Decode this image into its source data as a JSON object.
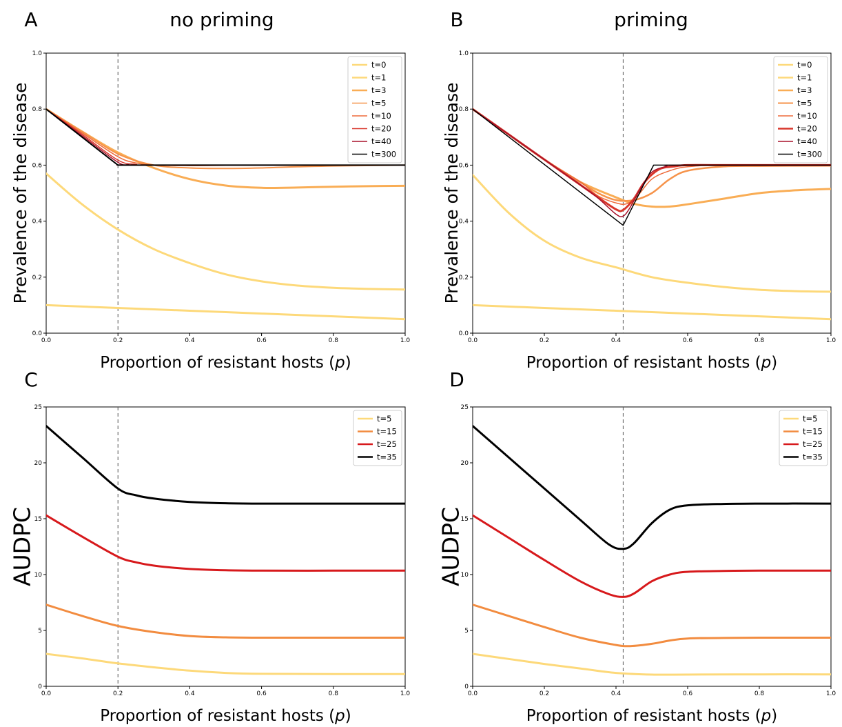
{
  "panels": [
    {
      "letter": "A",
      "column_title": "no priming"
    },
    {
      "letter": "B",
      "column_title": "priming"
    },
    {
      "letter": "C",
      "column_title": ""
    },
    {
      "letter": "D",
      "column_title": ""
    }
  ],
  "colors": {
    "t0": "#fdd97a",
    "t1": "#fdd97a",
    "t3": "#f9ad55",
    "t5": "#f6934a",
    "t10": "#ee6a3a",
    "t20": "#d8362b",
    "t40": "#a8112a",
    "t300": "#000000",
    "auc5": "#fdd97a",
    "auc15": "#f28c40",
    "auc25": "#d7191c",
    "auc35": "#000000",
    "vline": "#555555"
  },
  "chart_data": [
    {
      "type": "line",
      "panel": "A",
      "xlabel": "Proportion of resistant hosts (p)",
      "ylabel": "Prevalence of the disease",
      "xlim": [
        0,
        1
      ],
      "ylim": [
        0,
        1
      ],
      "xticks": [
        0.0,
        0.2,
        0.4,
        0.6,
        0.8,
        1.0
      ],
      "yticks": [
        0.0,
        0.2,
        0.4,
        0.6,
        0.8,
        1.0
      ],
      "vline": 0.2,
      "legend": "top-right",
      "series": [
        {
          "name": "t=0",
          "color_key": "t0",
          "width": 3,
          "x": [
            0,
            0.2,
            0.4,
            0.6,
            0.8,
            1.0
          ],
          "y": [
            0.1,
            0.09,
            0.08,
            0.07,
            0.06,
            0.05
          ]
        },
        {
          "name": "t=1",
          "color_key": "t1",
          "width": 3,
          "x": [
            0,
            0.1,
            0.2,
            0.3,
            0.4,
            0.5,
            0.6,
            0.7,
            0.8,
            0.9,
            1.0
          ],
          "y": [
            0.57,
            0.46,
            0.37,
            0.3,
            0.25,
            0.21,
            0.185,
            0.17,
            0.162,
            0.158,
            0.156
          ]
        },
        {
          "name": "t=3",
          "color_key": "t3",
          "width": 3,
          "x": [
            0,
            0.1,
            0.2,
            0.3,
            0.4,
            0.5,
            0.6,
            0.7,
            0.8,
            0.9,
            1.0
          ],
          "y": [
            0.8,
            0.72,
            0.645,
            0.59,
            0.55,
            0.527,
            0.519,
            0.52,
            0.523,
            0.525,
            0.526
          ]
        },
        {
          "name": "t=5",
          "color_key": "t5",
          "width": 2,
          "x": [
            0,
            0.1,
            0.2,
            0.3,
            0.4,
            0.5,
            0.6,
            0.7,
            0.8,
            1.0
          ],
          "y": [
            0.8,
            0.72,
            0.64,
            0.6,
            0.59,
            0.588,
            0.59,
            0.594,
            0.597,
            0.6
          ]
        },
        {
          "name": "t=10",
          "color_key": "t10",
          "width": 1.5,
          "x": [
            0,
            0.1,
            0.2,
            0.25,
            0.3,
            0.4,
            0.5,
            0.6,
            1.0
          ],
          "y": [
            0.8,
            0.715,
            0.63,
            0.608,
            0.6,
            0.598,
            0.599,
            0.6,
            0.6
          ]
        },
        {
          "name": "t=20",
          "color_key": "t20",
          "width": 1.5,
          "x": [
            0,
            0.1,
            0.2,
            0.25,
            0.3,
            1.0
          ],
          "y": [
            0.8,
            0.71,
            0.618,
            0.603,
            0.6,
            0.6
          ]
        },
        {
          "name": "t=40",
          "color_key": "t40",
          "width": 1.5,
          "x": [
            0,
            0.1,
            0.2,
            0.23,
            0.26,
            1.0
          ],
          "y": [
            0.8,
            0.705,
            0.61,
            0.602,
            0.6,
            0.6
          ]
        },
        {
          "name": "t=300",
          "color_key": "t300",
          "width": 2,
          "x": [
            0,
            0.2,
            1.0
          ],
          "y": [
            0.8,
            0.6,
            0.6
          ]
        }
      ]
    },
    {
      "type": "line",
      "panel": "B",
      "xlabel": "Proportion of resistant hosts (p)",
      "ylabel": "Prevalence of the disease",
      "xlim": [
        0,
        1
      ],
      "ylim": [
        0,
        1
      ],
      "xticks": [
        0.0,
        0.2,
        0.4,
        0.6,
        0.8,
        1.0
      ],
      "yticks": [
        0.0,
        0.2,
        0.4,
        0.6,
        0.8,
        1.0
      ],
      "vline": 0.42,
      "legend": "top-right",
      "series": [
        {
          "name": "t=0",
          "color_key": "t0",
          "width": 3,
          "x": [
            0,
            0.2,
            0.4,
            0.6,
            0.8,
            1.0
          ],
          "y": [
            0.1,
            0.09,
            0.08,
            0.07,
            0.06,
            0.05
          ]
        },
        {
          "name": "t=1",
          "color_key": "t1",
          "width": 3,
          "x": [
            0,
            0.1,
            0.2,
            0.3,
            0.4,
            0.5,
            0.6,
            0.7,
            0.8,
            0.9,
            1.0
          ],
          "y": [
            0.565,
            0.43,
            0.33,
            0.27,
            0.235,
            0.2,
            0.18,
            0.165,
            0.155,
            0.15,
            0.148
          ]
        },
        {
          "name": "t=3",
          "color_key": "t3",
          "width": 3,
          "x": [
            0,
            0.1,
            0.2,
            0.3,
            0.4,
            0.45,
            0.5,
            0.55,
            0.6,
            0.7,
            0.8,
            0.9,
            1.0
          ],
          "y": [
            0.8,
            0.71,
            0.62,
            0.54,
            0.485,
            0.462,
            0.452,
            0.452,
            0.46,
            0.48,
            0.5,
            0.51,
            0.515
          ]
        },
        {
          "name": "t=5",
          "color_key": "t5",
          "width": 2.5,
          "x": [
            0,
            0.1,
            0.2,
            0.3,
            0.35,
            0.4,
            0.45,
            0.5,
            0.55,
            0.6,
            0.7,
            0.8,
            1.0
          ],
          "y": [
            0.8,
            0.71,
            0.62,
            0.54,
            0.5,
            0.475,
            0.475,
            0.5,
            0.55,
            0.58,
            0.595,
            0.597,
            0.598
          ]
        },
        {
          "name": "t=10",
          "color_key": "t10",
          "width": 1.5,
          "x": [
            0,
            0.1,
            0.2,
            0.3,
            0.35,
            0.4,
            0.43,
            0.46,
            0.5,
            0.55,
            0.6,
            0.7,
            1.0
          ],
          "y": [
            0.8,
            0.71,
            0.62,
            0.54,
            0.49,
            0.465,
            0.462,
            0.49,
            0.55,
            0.58,
            0.594,
            0.6,
            0.6
          ]
        },
        {
          "name": "t=20",
          "color_key": "t20",
          "width": 3,
          "x": [
            0,
            0.1,
            0.2,
            0.3,
            0.35,
            0.4,
            0.42,
            0.45,
            0.48,
            0.52,
            0.56,
            0.6,
            0.7,
            1.0
          ],
          "y": [
            0.8,
            0.71,
            0.62,
            0.53,
            0.485,
            0.442,
            0.44,
            0.48,
            0.54,
            0.585,
            0.595,
            0.6,
            0.6,
            0.6
          ]
        },
        {
          "name": "t=40",
          "color_key": "t40",
          "width": 1.5,
          "x": [
            0,
            0.1,
            0.2,
            0.3,
            0.35,
            0.4,
            0.42,
            0.44,
            0.47,
            0.5,
            0.54,
            0.58,
            1.0
          ],
          "y": [
            0.8,
            0.71,
            0.62,
            0.53,
            0.482,
            0.425,
            0.418,
            0.45,
            0.52,
            0.575,
            0.595,
            0.6,
            0.6
          ]
        },
        {
          "name": "t=300",
          "color_key": "t300",
          "width": 1.5,
          "x": [
            0,
            0.42,
            0.505,
            0.52,
            1.0
          ],
          "y": [
            0.8,
            0.385,
            0.6,
            0.6,
            0.6
          ]
        }
      ]
    },
    {
      "type": "line",
      "panel": "C",
      "xlabel": "Proportion of resistant hosts (p)",
      "ylabel": "AUDPC",
      "xlim": [
        0,
        1
      ],
      "ylim": [
        0,
        25
      ],
      "xticks": [
        0.0,
        0.2,
        0.4,
        0.6,
        0.8,
        1.0
      ],
      "yticks": [
        0,
        5,
        10,
        15,
        20,
        25
      ],
      "vline": 0.2,
      "legend": "top-right",
      "series": [
        {
          "name": "t=5",
          "color_key": "auc5",
          "width": 3,
          "x": [
            0,
            0.1,
            0.2,
            0.3,
            0.4,
            0.5,
            0.6,
            0.8,
            1.0
          ],
          "y": [
            2.9,
            2.5,
            2.05,
            1.7,
            1.4,
            1.2,
            1.12,
            1.1,
            1.1
          ]
        },
        {
          "name": "t=15",
          "color_key": "auc15",
          "width": 3,
          "x": [
            0,
            0.1,
            0.2,
            0.3,
            0.4,
            0.5,
            0.6,
            0.8,
            1.0
          ],
          "y": [
            7.3,
            6.3,
            5.4,
            4.85,
            4.5,
            4.38,
            4.35,
            4.35,
            4.35
          ]
        },
        {
          "name": "t=25",
          "color_key": "auc25",
          "width": 3,
          "x": [
            0,
            0.1,
            0.2,
            0.25,
            0.3,
            0.4,
            0.5,
            0.6,
            0.8,
            1.0
          ],
          "y": [
            15.3,
            13.4,
            11.6,
            11.1,
            10.8,
            10.5,
            10.38,
            10.35,
            10.35,
            10.35
          ]
        },
        {
          "name": "t=35",
          "color_key": "auc35",
          "width": 3,
          "x": [
            0,
            0.1,
            0.2,
            0.25,
            0.3,
            0.4,
            0.5,
            0.6,
            0.8,
            1.0
          ],
          "y": [
            23.3,
            20.5,
            17.7,
            17.1,
            16.8,
            16.5,
            16.38,
            16.35,
            16.35,
            16.35
          ]
        }
      ]
    },
    {
      "type": "line",
      "panel": "D",
      "xlabel": "Proportion of resistant hosts (p)",
      "ylabel": "AUDPC",
      "xlim": [
        0,
        1
      ],
      "ylim": [
        0,
        25
      ],
      "xticks": [
        0.0,
        0.2,
        0.4,
        0.6,
        0.8,
        1.0
      ],
      "yticks": [
        0,
        5,
        10,
        15,
        20,
        25
      ],
      "vline": 0.42,
      "legend": "top-right",
      "series": [
        {
          "name": "t=5",
          "color_key": "auc5",
          "width": 3,
          "x": [
            0,
            0.1,
            0.2,
            0.3,
            0.4,
            0.5,
            0.6,
            0.8,
            1.0
          ],
          "y": [
            2.9,
            2.45,
            2.0,
            1.6,
            1.2,
            1.05,
            1.05,
            1.07,
            1.07
          ]
        },
        {
          "name": "t=15",
          "color_key": "auc15",
          "width": 3,
          "x": [
            0,
            0.1,
            0.2,
            0.3,
            0.4,
            0.44,
            0.5,
            0.55,
            0.6,
            0.7,
            0.8,
            1.0
          ],
          "y": [
            7.3,
            6.3,
            5.3,
            4.35,
            3.7,
            3.6,
            3.8,
            4.1,
            4.28,
            4.33,
            4.35,
            4.35
          ]
        },
        {
          "name": "t=25",
          "color_key": "auc25",
          "width": 3,
          "x": [
            0,
            0.1,
            0.2,
            0.3,
            0.38,
            0.42,
            0.45,
            0.5,
            0.55,
            0.6,
            0.7,
            0.8,
            1.0
          ],
          "y": [
            15.3,
            13.3,
            11.3,
            9.4,
            8.25,
            8.0,
            8.3,
            9.4,
            10.0,
            10.25,
            10.32,
            10.35,
            10.35
          ]
        },
        {
          "name": "t=35",
          "color_key": "auc35",
          "width": 3,
          "x": [
            0,
            0.1,
            0.2,
            0.3,
            0.38,
            0.42,
            0.45,
            0.5,
            0.55,
            0.6,
            0.7,
            0.8,
            1.0
          ],
          "y": [
            23.3,
            20.5,
            17.7,
            14.9,
            12.7,
            12.3,
            12.8,
            14.6,
            15.8,
            16.2,
            16.32,
            16.35,
            16.35
          ]
        }
      ]
    }
  ]
}
